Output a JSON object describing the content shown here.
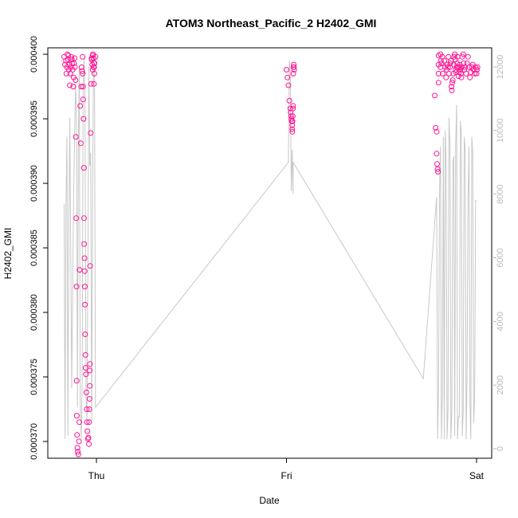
{
  "chart_data": {
    "type": "scatter",
    "title": "ATOM3 Northeast_Pacific_2 H2402_GMI",
    "xlabel": "Date",
    "ylabel": "H2402_GMI",
    "x_ticks": [
      {
        "value": 0.0,
        "label": "Thu"
      },
      {
        "value": 1.0,
        "label": "Fri"
      },
      {
        "value": 2.0,
        "label": "Sat"
      }
    ],
    "y_ticks": [
      {
        "value": 0.00037,
        "label": "0.000370"
      },
      {
        "value": 0.000375,
        "label": "0.000375"
      },
      {
        "value": 0.00038,
        "label": "0.000380"
      },
      {
        "value": 0.000385,
        "label": "0.000385"
      },
      {
        "value": 0.00039,
        "label": "0.000390"
      },
      {
        "value": 0.000395,
        "label": "0.000395"
      },
      {
        "value": 0.0004,
        "label": "0.000400"
      }
    ],
    "y2_ticks": [
      {
        "value": 0,
        "label": "0"
      },
      {
        "value": 2000,
        "label": "2000"
      },
      {
        "value": 4000,
        "label": "4000"
      },
      {
        "value": 6000,
        "label": "6000"
      },
      {
        "value": 8000,
        "label": "8000"
      },
      {
        "value": 10000,
        "label": "10000"
      },
      {
        "value": 12000,
        "label": "12000"
      }
    ],
    "xlim": [
      -0.18,
      2.04
    ],
    "ylim": [
      0.0003687,
      0.0004005
    ],
    "y2lim": [
      -300,
      12600
    ],
    "colors": {
      "points": "#ff1493",
      "line": "#c8c8c8",
      "axis": "#000000",
      "y2_axis": "#bbbbbb"
    },
    "series": [
      {
        "type": "scatter",
        "x": [
          -0.17,
          -0.165,
          -0.16,
          -0.158,
          -0.155,
          -0.152,
          -0.15,
          -0.148,
          -0.145,
          -0.143,
          -0.14,
          -0.138,
          -0.135,
          -0.132,
          -0.13,
          -0.128,
          -0.125,
          -0.122,
          -0.12,
          -0.118,
          -0.115,
          -0.113,
          -0.11,
          -0.108,
          -0.106,
          -0.105,
          -0.104,
          -0.103,
          -0.102,
          -0.1,
          -0.098,
          -0.095,
          -0.092,
          -0.09,
          -0.088,
          -0.085,
          -0.082,
          -0.08,
          -0.078,
          -0.075,
          -0.073,
          -0.072,
          -0.071,
          -0.07,
          -0.068,
          -0.066,
          -0.065,
          -0.064,
          -0.063,
          -0.062,
          -0.061,
          -0.06,
          -0.059,
          -0.058,
          -0.057,
          -0.055,
          -0.053,
          -0.051,
          -0.05,
          -0.048,
          -0.045,
          -0.042,
          -0.04,
          -0.038,
          -0.037,
          -0.036,
          -0.035,
          -0.035,
          -0.034,
          -0.033,
          -0.03,
          -0.028,
          -0.025,
          -0.02,
          -0.018,
          -0.015,
          -0.012,
          -0.012,
          -0.013,
          -0.011,
          -0.01,
          -0.005,
          -0.015,
          -0.02,
          -0.022,
          -0.025
        ],
        "y": [
          0.0003998,
          0.0003992,
          0.0003995,
          0.0003985,
          0.000399,
          0.0004,
          0.0003996,
          0.0003999,
          0.0003988,
          0.0003992,
          0.0003976,
          0.0003985,
          0.000399,
          0.0003998,
          0.0003996,
          0.0003993,
          0.0003988,
          0.0003975,
          0.0003982,
          0.0003993,
          0.0003997,
          0.000399,
          0.000398,
          0.0003936,
          0.0003873,
          0.000382,
          0.0003747,
          0.000372,
          0.0003705,
          0.0003695,
          0.0003692,
          0.000369,
          0.00037,
          0.0003715,
          0.0003833,
          0.000396,
          0.0003931,
          0.0003975,
          0.000399,
          0.0003987,
          0.0003998,
          0.0003985,
          0.0003975,
          0.0003965,
          0.000395,
          0.0003912,
          0.0003873,
          0.0003853,
          0.0003842,
          0.0003832,
          0.000382,
          0.0003806,
          0.0003783,
          0.0003767,
          0.0003757,
          0.0003752,
          0.0003738,
          0.0003725,
          0.0003715,
          0.0003708,
          0.0003702,
          0.0003703,
          0.0003698,
          0.0003715,
          0.0003725,
          0.0003733,
          0.0003743,
          0.0003755,
          0.000376,
          0.0003836,
          0.0003939,
          0.0003977,
          0.0003996,
          0.0003999,
          0.0004,
          0.0003997,
          0.000399,
          0.0003993,
          0.0003977,
          0.0003985,
          0.0003993,
          0.0003998,
          0.000399,
          0.0003988,
          0.0003992,
          0.0003997
        ],
        "x2": [
          1.0,
          1.005,
          1.01,
          1.015,
          1.02,
          1.022,
          1.024,
          1.026,
          1.028,
          1.03,
          1.03,
          1.031,
          1.032,
          1.033,
          1.034,
          1.035,
          1.036,
          1.037,
          1.038,
          1.039,
          1.04
        ],
        "y2": [
          0.0003988,
          0.0003982,
          0.0003976,
          0.0003964,
          0.0003958,
          0.0003955,
          0.0003952,
          0.000395,
          0.0003948,
          0.0003945,
          0.0003942,
          0.000394,
          0.0003948,
          0.0003952,
          0.0003958,
          0.000396,
          0.0003985,
          0.000399,
          0.0003992,
          0.000399,
          0.0003988
        ],
        "x3": [
          1.78,
          1.785,
          1.79,
          1.79,
          1.792,
          1.795,
          1.797,
          1.8,
          1.8,
          1.8,
          1.8,
          1.81,
          1.81,
          1.812,
          1.815,
          1.82,
          1.822,
          1.83,
          1.835,
          1.84,
          1.842,
          1.845,
          1.85,
          1.852,
          1.855,
          1.86,
          1.862,
          1.865,
          1.868,
          1.87,
          1.872,
          1.875,
          1.878,
          1.88,
          1.882,
          1.885,
          1.888,
          1.89,
          1.892,
          1.895,
          1.898,
          1.9,
          1.902,
          1.905,
          1.908,
          1.91,
          1.912,
          1.915,
          1.918,
          1.92,
          1.922,
          1.925,
          1.93,
          1.932,
          1.935,
          1.94,
          1.945,
          1.95,
          1.955,
          1.96,
          1.965,
          1.97,
          1.975,
          1.98,
          1.985,
          1.99,
          1.995,
          2.0,
          2.002,
          2.005
        ],
        "y3": [
          0.0003968,
          0.0003943,
          0.000394,
          0.0003923,
          0.0003915,
          0.0003911,
          0.0003909,
          0.0003999,
          0.0003992,
          0.0003985,
          0.0003978,
          0.000399,
          0.0004,
          0.0003995,
          0.0003993,
          0.0003998,
          0.0003985,
          0.0003995,
          0.000399,
          0.0003982,
          0.0003988,
          0.0003992,
          0.000399,
          0.0003998,
          0.0003985,
          0.000399,
          0.0003993,
          0.0003995,
          0.0003975,
          0.0003972,
          0.0003978,
          0.000398,
          0.0003985,
          0.0003992,
          0.0003998,
          0.0004,
          0.0003996,
          0.0003988,
          0.0003986,
          0.000399,
          0.0003993,
          0.0003998,
          0.000399,
          0.0003983,
          0.0003986,
          0.000399,
          0.0003992,
          0.0003988,
          0.0003985,
          0.0003982,
          0.000399,
          0.0003998,
          0.0004,
          0.0003993,
          0.0003988,
          0.000399,
          0.0003985,
          0.0003993,
          0.0003998,
          0.000399,
          0.0003982,
          0.0003986,
          0.000399,
          0.0003992,
          0.0003988,
          0.0003985,
          0.000399,
          0.0003985,
          0.0003988,
          0.000399
        ]
      },
      {
        "type": "line",
        "axis": "y2",
        "x": [
          -0.17,
          -0.165,
          -0.16,
          -0.155,
          -0.15,
          -0.145,
          -0.14,
          -0.13,
          -0.12,
          -0.11,
          -0.105,
          -0.1,
          -0.095,
          -0.09,
          -0.085,
          -0.08,
          -0.075,
          -0.07,
          -0.065,
          -0.06,
          -0.055,
          -0.05,
          -0.045,
          -0.04,
          -0.035,
          -0.03,
          -0.025,
          -0.02,
          -0.015,
          -0.01,
          -0.005,
          1.01,
          1.015,
          1.02,
          1.025,
          1.03,
          1.035,
          1.035,
          1.72,
          1.79,
          1.795,
          1.8,
          1.805,
          1.81,
          1.815,
          1.82,
          1.825,
          1.83,
          1.835,
          1.84,
          1.845,
          1.85,
          1.855,
          1.86,
          1.865,
          1.87,
          1.875,
          1.88,
          1.885,
          1.89,
          1.895,
          1.9,
          1.905,
          1.91,
          1.915,
          1.92,
          1.925,
          1.93,
          1.935,
          1.94,
          1.945,
          1.95,
          1.955,
          1.96,
          1.965,
          1.97,
          1.975,
          1.98,
          1.985,
          1.99,
          1.995,
          2.0
        ],
        "y": [
          7700,
          300,
          7600,
          9800,
          400,
          6800,
          10400,
          1900,
          8000,
          11500,
          10300,
          1300,
          9500,
          12000,
          1500,
          300,
          2000,
          11200,
          12300,
          10800,
          1600,
          900,
          5700,
          12000,
          8900,
          9300,
          900,
          8100,
          12200,
          11700,
          1300,
          9000,
          12200,
          11800,
          8100,
          9400,
          8000,
          9000,
          2200,
          7900,
          300,
          1800,
          8000,
          9500,
          300,
          1800,
          9800,
          300,
          10000,
          9000,
          300,
          1200,
          10400,
          9600,
          300,
          1200,
          9000,
          9200,
          400,
          9600,
          10800,
          300,
          1000,
          1000,
          10300,
          9900,
          400,
          1200,
          9800,
          9400,
          300,
          2300,
          7800,
          9500,
          1500,
          300,
          9800,
          9300,
          800,
          1600,
          7800,
          7800
        ]
      }
    ]
  }
}
